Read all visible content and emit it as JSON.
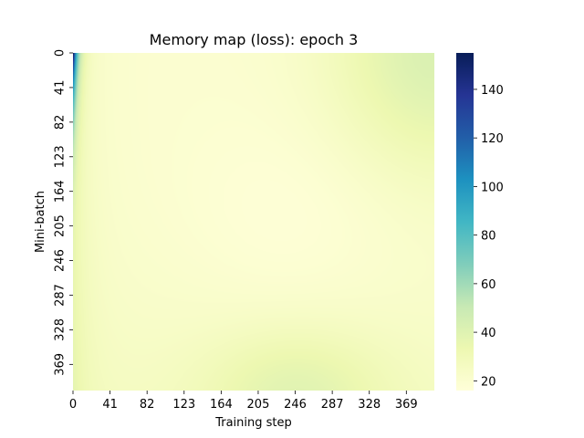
{
  "chart_data": {
    "type": "heatmap",
    "title": "Memory map (loss): epoch 3",
    "xlabel": "Training step",
    "ylabel": "Mini-batch",
    "x_ticks": [
      "0",
      "41",
      "82",
      "123",
      "164",
      "205",
      "246",
      "287",
      "328",
      "369"
    ],
    "y_ticks": [
      "0",
      "41",
      "82",
      "123",
      "164",
      "205",
      "246",
      "287",
      "328",
      "369"
    ],
    "grid_size": [
      400,
      400
    ],
    "colorbar": {
      "ticks": [
        "20",
        "40",
        "60",
        "80",
        "100",
        "120",
        "140"
      ],
      "vmin": 16,
      "vmax": 155,
      "colormap": "YlGnBu"
    },
    "cmap_stops": [
      {
        "t": 0.0,
        "color": "#ffffd9"
      },
      {
        "t": 0.125,
        "color": "#edf8b1"
      },
      {
        "t": 0.25,
        "color": "#c7e9b4"
      },
      {
        "t": 0.375,
        "color": "#7fcdbb"
      },
      {
        "t": 0.5,
        "color": "#41b6c4"
      },
      {
        "t": 0.625,
        "color": "#1d91c0"
      },
      {
        "t": 0.75,
        "color": "#225ea8"
      },
      {
        "t": 0.875,
        "color": "#253494"
      },
      {
        "t": 1.0,
        "color": "#081d58"
      }
    ],
    "value_field": {
      "base_loss": 20,
      "peak_at_origin": 155,
      "description_points": [
        {
          "step": 0,
          "batch": 0,
          "loss": 155
        },
        {
          "step": 0,
          "batch": 41,
          "loss": 110
        },
        {
          "step": 0,
          "batch": 123,
          "loss": 50
        },
        {
          "step": 400,
          "batch": 0,
          "loss": 45
        },
        {
          "step": 246,
          "batch": 400,
          "loss": 36
        },
        {
          "step": 246,
          "batch": 205,
          "loss": 18
        }
      ]
    }
  }
}
